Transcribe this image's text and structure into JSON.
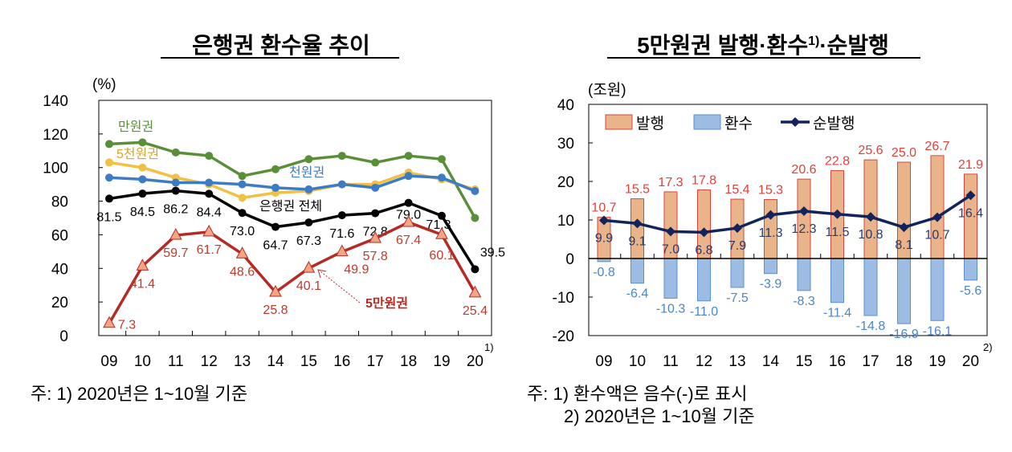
{
  "chart_data": [
    {
      "type": "line",
      "title": "은행권 환수율 추이",
      "ylabel": "(%)",
      "ylim": [
        0,
        140
      ],
      "yticks": [
        0,
        20,
        40,
        60,
        80,
        100,
        120,
        140
      ],
      "categories": [
        "09",
        "10",
        "11",
        "12",
        "13",
        "14",
        "15",
        "16",
        "17",
        "18",
        "19",
        "20"
      ],
      "last_category_note": "1)",
      "grid": false,
      "series": [
        {
          "name": "만원권",
          "color": "#5a8f3a",
          "values": [
            114,
            115,
            109,
            107,
            95,
            99,
            105,
            107,
            103,
            107,
            105,
            70
          ],
          "labeled": false
        },
        {
          "name": "5천원권",
          "color": "#f2c043",
          "values": [
            103,
            100,
            94,
            90,
            82,
            85,
            86,
            90,
            90,
            97,
            93,
            87
          ],
          "labeled": false
        },
        {
          "name": "천원권",
          "color": "#3c7cc7",
          "values": [
            94,
            93,
            91,
            91,
            90,
            88,
            87,
            90,
            88,
            95,
            94,
            86
          ],
          "labeled": false
        },
        {
          "name": "은행권 전체",
          "color": "#000000",
          "values": [
            81.5,
            84.5,
            86.2,
            84.4,
            73.0,
            64.7,
            67.3,
            71.6,
            72.8,
            79.0,
            71.3,
            39.5
          ],
          "labeled": true,
          "label_color": "#000000"
        },
        {
          "name": "5만원권",
          "color": "#b52a22",
          "marker_color": "#f4a582",
          "values": [
            7.3,
            41.4,
            59.7,
            61.7,
            48.6,
            25.8,
            40.1,
            49.9,
            57.8,
            67.4,
            60.1,
            25.4
          ],
          "labeled": true,
          "label_color": "#c0392b"
        }
      ],
      "footnote": "주: 1) 2020년은 1~10월 기준"
    },
    {
      "type": "bar",
      "title": "5만원권 발행·환수",
      "title_sup": "1)",
      "title_suffix": "·순발행",
      "ylabel": "(조원)",
      "ylim": [
        -20,
        40
      ],
      "yticks": [
        -20,
        -10,
        0,
        10,
        20,
        30,
        40
      ],
      "categories": [
        "09",
        "10",
        "11",
        "12",
        "13",
        "14",
        "15",
        "16",
        "17",
        "18",
        "19",
        "20"
      ],
      "last_category_note": "2)",
      "legend": "top-left",
      "series": [
        {
          "name": "발행",
          "type": "bar",
          "color": "#e9b48a",
          "edge": "#d9443a",
          "label_color": "#e2403a",
          "values": [
            10.7,
            15.5,
            17.3,
            17.8,
            15.4,
            15.3,
            20.6,
            22.8,
            25.6,
            25.0,
            26.7,
            21.9
          ]
        },
        {
          "name": "환수",
          "type": "bar",
          "color": "#9dbce3",
          "edge": "#5b8fd0",
          "label_color": "#4a86c8",
          "values": [
            -0.8,
            -6.4,
            -10.3,
            -11.0,
            -7.5,
            -3.9,
            -8.3,
            -11.4,
            -14.8,
            -16.9,
            -16.1,
            -5.6
          ]
        },
        {
          "name": "순발행",
          "type": "line",
          "color": "#13235c",
          "label_color": "#2a3a6a",
          "values": [
            9.9,
            9.1,
            7.0,
            6.8,
            7.9,
            11.3,
            12.3,
            11.5,
            10.8,
            8.1,
            10.7,
            16.4
          ]
        }
      ],
      "footnotes": [
        "주: 1) 환수액은 음수(-)로 표시",
        "2) 2020년은 1~10월 기준"
      ]
    }
  ]
}
